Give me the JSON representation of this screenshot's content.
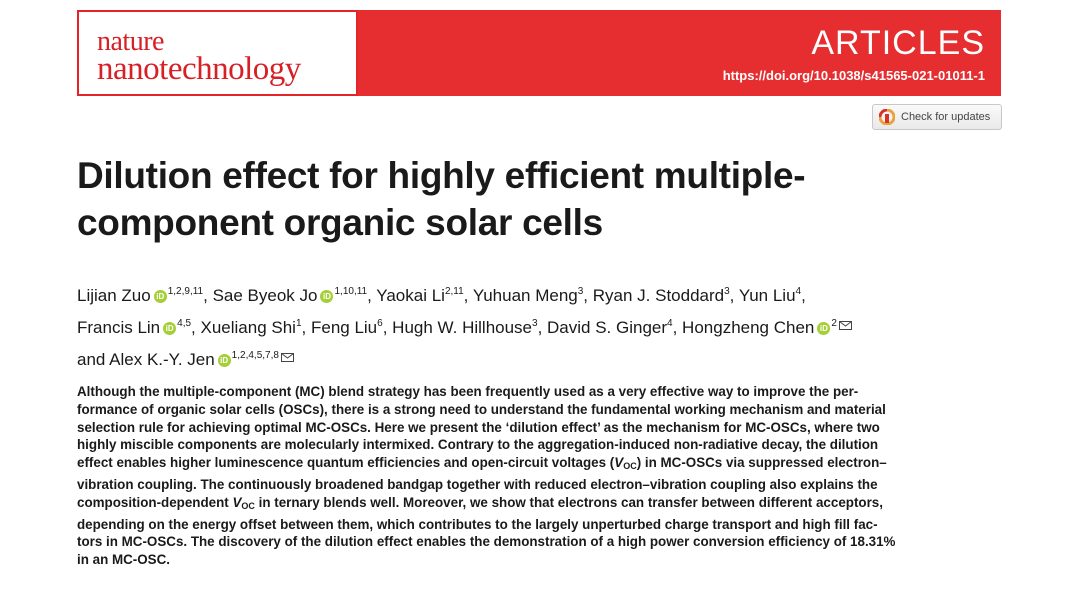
{
  "journal": {
    "name_line1": "nature",
    "name_line2": "nanotechnology",
    "section": "ARTICLES",
    "doi": "https://doi.org/10.1038/s41565-021-01011-1",
    "update_button": "Check for updates"
  },
  "title_lines": [
    "Dilution effect for highly efficient multiple-",
    "component organic solar cells"
  ],
  "authors": [
    {
      "name": "Lijian Zuo",
      "affil": "1,2,9,11",
      "orcid": true,
      "sep": ", "
    },
    {
      "name": "Sae Byeok Jo",
      "affil": "1,10,11",
      "orcid": true,
      "sep": ", "
    },
    {
      "name": "Yaokai Li",
      "affil": "2,11",
      "sep": ", "
    },
    {
      "name": "Yuhuan Meng",
      "affil": "3",
      "sep": ", "
    },
    {
      "name": "Ryan J. Stoddard",
      "affil": "3",
      "sep": ", "
    },
    {
      "name": "Yun Liu",
      "affil": "4",
      "sep": ","
    },
    {
      "name": "Francis Lin",
      "affil": "4,5",
      "orcid": true,
      "sep": ", "
    },
    {
      "name": "Xueliang Shi",
      "affil": "1",
      "sep": ", "
    },
    {
      "name": "Feng Liu",
      "affil": "6",
      "sep": ", "
    },
    {
      "name": "Hugh W. Hillhouse",
      "affil": "3",
      "sep": ", "
    },
    {
      "name": "David S. Ginger",
      "affil": "4",
      "sep": ", "
    },
    {
      "name": "Hongzheng Chen",
      "affil": "2",
      "orcid": true,
      "mail": true,
      "sep": ""
    },
    {
      "name": "and Alex K.-Y. Jen",
      "affil": "1,2,4,5,7,8",
      "orcid": true,
      "mail": true,
      "sep": ""
    }
  ],
  "abstract": {
    "l1": "Although the multiple-component (MC) blend strategy has been frequently used as a very effective way to improve the per-",
    "l2": "formance of organic solar cells (OSCs), there is a strong need to understand the fundamental working mechanism and material",
    "l3": "selection rule for achieving optimal MC-OSCs. Here we present the ‘dilution effect’ as the mechanism for MC-OSCs, where two",
    "l4": "highly miscible components are molecularly intermixed. Contrary to the aggregation-induced non-radiative decay, the dilution",
    "l5a": "effect enables higher luminescence quantum efficiencies and open-circuit voltages (",
    "l5v": "V",
    "l5sub": "OC",
    "l5b": ") in MC-OSCs via suppressed electron–",
    "l6": "vibration coupling. The continuously broadened bandgap together with reduced electron–vibration coupling also explains the",
    "l7a": "composition-dependent ",
    "l7v": "V",
    "l7sub": "OC",
    "l7b": " in ternary blends well. Moreover, we show that electrons can transfer between different acceptors,",
    "l8": "depending on the energy offset between them, which contributes to the largely unperturbed charge transport and high fill fac-",
    "l9": "tors in MC-OSCs. The discovery of the dilution effect enables the demonstration of a high power conversion efficiency of 18.31%",
    "l10": "in an MC-OSC."
  },
  "colors": {
    "brand_red": "#e62d2f",
    "orcid_green": "#a6ce39"
  }
}
